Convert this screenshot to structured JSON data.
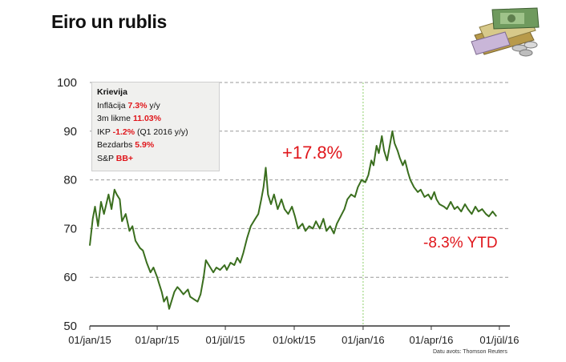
{
  "header": {
    "title": "Eiro un rublis"
  },
  "icons": {
    "money": "money-pile-icon"
  },
  "infobox": {
    "heading": "Krievija",
    "rows": [
      {
        "label": "Inflācija ",
        "value": "7.3%",
        "suffix": " y/y"
      },
      {
        "label": "3m likme ",
        "value": "11.03%",
        "suffix": ""
      },
      {
        "label": "IKP ",
        "value": "-1.2%",
        "suffix": " (Q1 2016 y/y)"
      },
      {
        "label": "Bezdarbs ",
        "value": "5.9%",
        "suffix": ""
      },
      {
        "label": "S&P ",
        "value": "BB+",
        "suffix": ""
      }
    ]
  },
  "annotations": {
    "change": "+17.8%",
    "ytd": "-8.3% YTD"
  },
  "source": "Datu avots: Thomson Reuters",
  "colors": {
    "line": "#3a6e1e",
    "accent": "#e0161b",
    "grid": "#9a9a9a",
    "vline": "#8fcf6a",
    "box": "#f0f0ee"
  },
  "chart_data": {
    "type": "line",
    "ylim": [
      50,
      100
    ],
    "yticks": [
      50,
      60,
      70,
      80,
      90,
      100
    ],
    "xlim": [
      "2015-01-01",
      "2016-07-15"
    ],
    "xticks": [
      {
        "label": "01/jan/15",
        "date": "2015-01-01"
      },
      {
        "label": "01/apr/15",
        "date": "2015-04-01"
      },
      {
        "label": "01/jūl/15",
        "date": "2015-07-01"
      },
      {
        "label": "01/okt/15",
        "date": "2015-10-01"
      },
      {
        "label": "01/jan/16",
        "date": "2016-01-01"
      },
      {
        "label": "01/apr/16",
        "date": "2016-04-01"
      },
      {
        "label": "01/jūl/16",
        "date": "2016-07-01"
      }
    ],
    "marker_date": "2016-01-01",
    "grid": "dashed-horizontal",
    "series": [
      {
        "values": [
          [
            "2015-01-01",
            66.5
          ],
          [
            "2015-01-05",
            72.0
          ],
          [
            "2015-01-08",
            74.5
          ],
          [
            "2015-01-12",
            70.5
          ],
          [
            "2015-01-16",
            75.5
          ],
          [
            "2015-01-20",
            73.0
          ],
          [
            "2015-01-26",
            77.0
          ],
          [
            "2015-01-30",
            74.0
          ],
          [
            "2015-02-03",
            78.0
          ],
          [
            "2015-02-06",
            77.0
          ],
          [
            "2015-02-10",
            76.0
          ],
          [
            "2015-02-13",
            71.5
          ],
          [
            "2015-02-18",
            73.0
          ],
          [
            "2015-02-23",
            69.5
          ],
          [
            "2015-02-27",
            70.5
          ],
          [
            "2015-03-03",
            67.5
          ],
          [
            "2015-03-09",
            66.0
          ],
          [
            "2015-03-13",
            65.5
          ],
          [
            "2015-03-18",
            63.0
          ],
          [
            "2015-03-23",
            61.0
          ],
          [
            "2015-03-27",
            62.0
          ],
          [
            "2015-04-01",
            60.0
          ],
          [
            "2015-04-03",
            59.0
          ],
          [
            "2015-04-07",
            57.0
          ],
          [
            "2015-04-10",
            55.0
          ],
          [
            "2015-04-14",
            56.0
          ],
          [
            "2015-04-17",
            53.5
          ],
          [
            "2015-04-21",
            55.5
          ],
          [
            "2015-04-24",
            57.0
          ],
          [
            "2015-04-28",
            58.0
          ],
          [
            "2015-05-01",
            57.5
          ],
          [
            "2015-05-06",
            56.5
          ],
          [
            "2015-05-12",
            57.5
          ],
          [
            "2015-05-15",
            56.0
          ],
          [
            "2015-05-20",
            55.5
          ],
          [
            "2015-05-25",
            55.0
          ],
          [
            "2015-05-29",
            56.5
          ],
          [
            "2015-06-02",
            60.0
          ],
          [
            "2015-06-05",
            63.5
          ],
          [
            "2015-06-09",
            62.5
          ],
          [
            "2015-06-15",
            61.0
          ],
          [
            "2015-06-19",
            62.0
          ],
          [
            "2015-06-24",
            61.5
          ],
          [
            "2015-06-30",
            62.5
          ],
          [
            "2015-07-03",
            61.5
          ],
          [
            "2015-07-08",
            63.0
          ],
          [
            "2015-07-13",
            62.5
          ],
          [
            "2015-07-17",
            64.0
          ],
          [
            "2015-07-21",
            63.0
          ],
          [
            "2015-07-25",
            65.0
          ],
          [
            "2015-07-30",
            68.0
          ],
          [
            "2015-08-04",
            70.5
          ],
          [
            "2015-08-10",
            72.0
          ],
          [
            "2015-08-14",
            73.0
          ],
          [
            "2015-08-18",
            76.0
          ],
          [
            "2015-08-21",
            78.5
          ],
          [
            "2015-08-24",
            82.5
          ],
          [
            "2015-08-27",
            77.0
          ],
          [
            "2015-08-31",
            75.0
          ],
          [
            "2015-09-04",
            77.0
          ],
          [
            "2015-09-09",
            74.0
          ],
          [
            "2015-09-14",
            76.0
          ],
          [
            "2015-09-18",
            74.0
          ],
          [
            "2015-09-23",
            73.0
          ],
          [
            "2015-09-28",
            74.5
          ],
          [
            "2015-10-02",
            72.5
          ],
          [
            "2015-10-06",
            70.0
          ],
          [
            "2015-10-12",
            71.0
          ],
          [
            "2015-10-16",
            69.5
          ],
          [
            "2015-10-21",
            70.5
          ],
          [
            "2015-10-26",
            70.0
          ],
          [
            "2015-10-30",
            71.5
          ],
          [
            "2015-11-04",
            70.0
          ],
          [
            "2015-11-09",
            72.0
          ],
          [
            "2015-11-13",
            69.5
          ],
          [
            "2015-11-18",
            70.5
          ],
          [
            "2015-11-23",
            69.0
          ],
          [
            "2015-11-27",
            71.0
          ],
          [
            "2015-12-02",
            72.5
          ],
          [
            "2015-12-07",
            74.0
          ],
          [
            "2015-12-11",
            76.0
          ],
          [
            "2015-12-16",
            77.0
          ],
          [
            "2015-12-21",
            76.5
          ],
          [
            "2015-12-25",
            78.5
          ],
          [
            "2015-12-30",
            80.0
          ],
          [
            "2016-01-04",
            79.5
          ],
          [
            "2016-01-08",
            81.0
          ],
          [
            "2016-01-12",
            84.0
          ],
          [
            "2016-01-15",
            83.0
          ],
          [
            "2016-01-19",
            87.0
          ],
          [
            "2016-01-22",
            85.5
          ],
          [
            "2016-01-26",
            89.0
          ],
          [
            "2016-01-29",
            86.0
          ],
          [
            "2016-02-02",
            84.0
          ],
          [
            "2016-02-05",
            86.5
          ],
          [
            "2016-02-09",
            90.0
          ],
          [
            "2016-02-12",
            87.5
          ],
          [
            "2016-02-16",
            86.0
          ],
          [
            "2016-02-19",
            84.5
          ],
          [
            "2016-02-23",
            83.0
          ],
          [
            "2016-02-26",
            84.0
          ],
          [
            "2016-03-01",
            81.5
          ],
          [
            "2016-03-04",
            80.0
          ],
          [
            "2016-03-09",
            78.5
          ],
          [
            "2016-03-14",
            77.5
          ],
          [
            "2016-03-18",
            78.0
          ],
          [
            "2016-03-23",
            76.5
          ],
          [
            "2016-03-28",
            77.0
          ],
          [
            "2016-04-01",
            76.0
          ],
          [
            "2016-04-05",
            77.5
          ],
          [
            "2016-04-08",
            76.0
          ],
          [
            "2016-04-12",
            75.0
          ],
          [
            "2016-04-18",
            74.5
          ],
          [
            "2016-04-22",
            74.0
          ],
          [
            "2016-04-27",
            75.5
          ],
          [
            "2016-05-02",
            74.0
          ],
          [
            "2016-05-06",
            74.5
          ],
          [
            "2016-05-11",
            73.5
          ],
          [
            "2016-05-16",
            75.0
          ],
          [
            "2016-05-20",
            74.0
          ],
          [
            "2016-05-25",
            73.0
          ],
          [
            "2016-05-30",
            74.5
          ],
          [
            "2016-06-03",
            73.5
          ],
          [
            "2016-06-08",
            74.0
          ],
          [
            "2016-06-13",
            73.0
          ],
          [
            "2016-06-17",
            72.5
          ],
          [
            "2016-06-22",
            73.5
          ],
          [
            "2016-06-27",
            72.5
          ]
        ]
      }
    ]
  }
}
